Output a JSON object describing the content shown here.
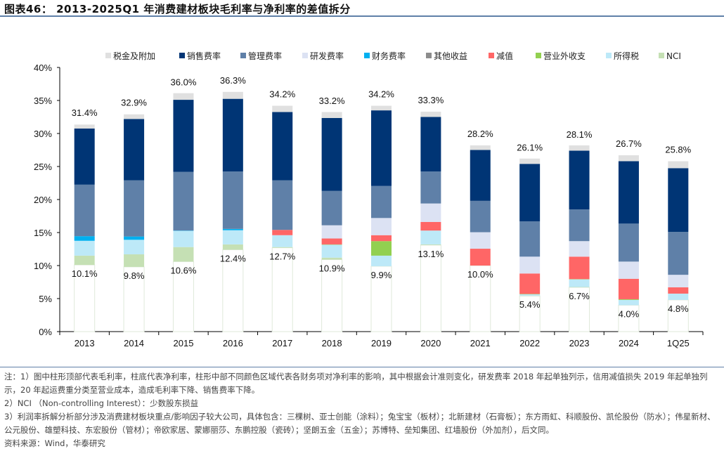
{
  "title": "图表46： 2013-2025Q1 年消费建材板块毛利率与净利率的差值拆分",
  "notes": [
    "注：1）图中柱形顶部代表毛利率，柱底代表净利率，柱形中部不同颜色区域代表各财务项对净利率的影响，其中根据会计准则变化，研发费率 2018 年起单独列示，信用减值损失 2019 年起单独列示，20 年起运费重分类至营业成本，造成毛利率下降、销售费率下降。",
    "2）NCI （Non-controlling Interest）：少数股东损益",
    "3）利润率拆解分析部分涉及消费建材板块重点/影响因子较大公司，具体包含：三棵树、亚士创能（涂料）；兔宝宝（板材）；北新建材（石膏板）；东方雨虹、科顺股份、凯伦股份（防水）；伟星新材、公元股份、雄塑科技、东宏股份（管材）；帝欧家居、蒙娜丽莎、东鹏控股（瓷砖）；坚朗五金（五金）；苏博特、垒知集团、红墙股份（外加剂），后文同。",
    "资料来源：Wind，华泰研究"
  ],
  "chart_data": {
    "type": "bar",
    "stacked": true,
    "categories": [
      "2013",
      "2014",
      "2015",
      "2016",
      "2017",
      "2018",
      "2019",
      "2020",
      "2021",
      "2022",
      "2023",
      "2024",
      "1Q25"
    ],
    "ylim": [
      0,
      40
    ],
    "yticks": [
      "0%",
      "5%",
      "10%",
      "15%",
      "20%",
      "25%",
      "30%",
      "35%",
      "40%"
    ],
    "legend_position": "top",
    "grid": false,
    "net_margin": [
      10.1,
      9.8,
      10.6,
      12.4,
      12.7,
      10.9,
      9.9,
      13.1,
      10.0,
      5.4,
      6.7,
      4.0,
      4.8
    ],
    "gross_margin": [
      31.4,
      32.9,
      36.0,
      36.3,
      34.2,
      33.2,
      34.2,
      33.3,
      28.2,
      26.1,
      28.1,
      26.7,
      25.8
    ],
    "net_labels": [
      "10.1%",
      "9.8%",
      "10.6%",
      "12.4%",
      "12.7%",
      "10.9%",
      "9.9%",
      "13.1%",
      "10.0%",
      "5.4%",
      "6.7%",
      "4.0%",
      "4.8%"
    ],
    "gross_labels": [
      "31.4%",
      "32.9%",
      "36.0%",
      "36.3%",
      "34.2%",
      "33.2%",
      "34.2%",
      "33.3%",
      "28.2%",
      "26.1%",
      "28.1%",
      "26.7%",
      "25.8%"
    ],
    "stack_order_bottom_up": [
      "NCI",
      "所得税",
      "营业外收支",
      "减值",
      "其他收益",
      "财务费率",
      "研发费率",
      "管理费率",
      "销售费率",
      "税金及附加"
    ],
    "legend_order": [
      "税金及附加",
      "销售费率",
      "管理费率",
      "研发费率",
      "财务费率",
      "其他收益",
      "减值",
      "营业外收支",
      "所得税",
      "NCI"
    ],
    "series": [
      {
        "name": "税金及附加",
        "color": "#e0e0e0",
        "values": [
          0.6,
          0.7,
          1.0,
          1.05,
          0.95,
          0.9,
          0.7,
          0.8,
          0.7,
          0.8,
          0.8,
          0.9,
          1.05
        ]
      },
      {
        "name": "销售费率",
        "color": "#003575",
        "values": [
          8.5,
          9.3,
          10.9,
          11.0,
          10.35,
          11.05,
          11.45,
          8.25,
          7.7,
          8.7,
          8.9,
          9.45,
          9.65
        ]
      },
      {
        "name": "管理费率",
        "color": "#5f80a8",
        "values": [
          7.8,
          8.5,
          8.9,
          8.7,
          7.5,
          5.2,
          4.85,
          4.85,
          4.75,
          5.35,
          4.8,
          5.75,
          6.5
        ]
      },
      {
        "name": "研发费率",
        "color": "#dce2f3",
        "values": [
          0,
          0,
          0,
          0,
          0,
          2.0,
          2.6,
          2.8,
          2.5,
          2.55,
          2.35,
          2.6,
          1.9
        ]
      },
      {
        "name": "财务费率",
        "color": "#00b0f0",
        "values": [
          0.7,
          0.5,
          0.05,
          0.2,
          0,
          0,
          0,
          0,
          0,
          0,
          0,
          0,
          0
        ]
      },
      {
        "name": "其他收益",
        "color": "#8c8c8c",
        "values": [
          0,
          0,
          0,
          0,
          0,
          0,
          0,
          0,
          0,
          0,
          0,
          0,
          0
        ]
      },
      {
        "name": "减值",
        "color": "#ff6666",
        "values": [
          0,
          0,
          0,
          0,
          0.8,
          0.9,
          0.9,
          1.3,
          2.55,
          3.1,
          3.4,
          3.1,
          0.95
        ]
      },
      {
        "name": "营业外收支",
        "color": "#92d050",
        "values": [
          0,
          0,
          0,
          0,
          0,
          0.05,
          2.2,
          0,
          0,
          0.05,
          0.05,
          0.1,
          0
        ]
      },
      {
        "name": "所得税",
        "color": "#bde9f8",
        "values": [
          2.25,
          2.2,
          2.45,
          2.15,
          1.8,
          1.95,
          1.6,
          2.1,
          0,
          0.2,
          1.15,
          0.8,
          0.95
        ]
      },
      {
        "name": "NCI",
        "color": "#c5e0b4",
        "values": [
          1.4,
          1.9,
          2.2,
          0.8,
          0.1,
          0.3,
          0,
          0.1,
          0,
          0.05,
          0.05,
          0,
          0
        ]
      }
    ]
  }
}
